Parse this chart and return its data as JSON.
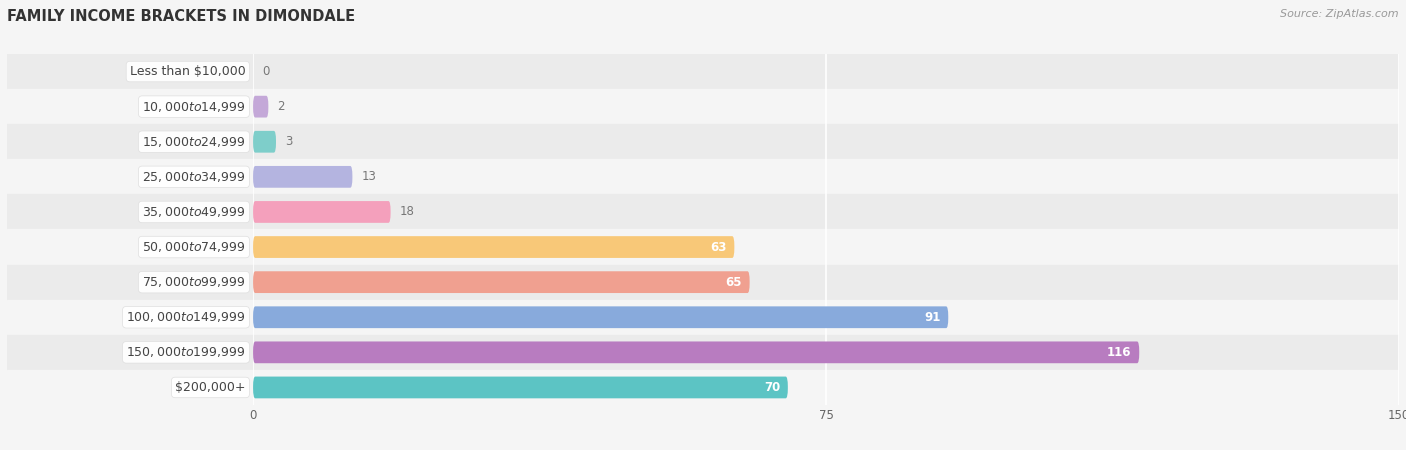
{
  "title": "FAMILY INCOME BRACKETS IN DIMONDALE",
  "source": "Source: ZipAtlas.com",
  "categories": [
    "Less than $10,000",
    "$10,000 to $14,999",
    "$15,000 to $24,999",
    "$25,000 to $34,999",
    "$35,000 to $49,999",
    "$50,000 to $74,999",
    "$75,000 to $99,999",
    "$100,000 to $149,999",
    "$150,000 to $199,999",
    "$200,000+"
  ],
  "values": [
    0,
    2,
    3,
    13,
    18,
    63,
    65,
    91,
    116,
    70
  ],
  "bar_colors": [
    "#a8c4e0",
    "#c4a8d8",
    "#7ececa",
    "#b4b4e0",
    "#f4a0bc",
    "#f8c878",
    "#f0a090",
    "#88aadc",
    "#b87cc0",
    "#5cc4c4"
  ],
  "bar_height": 0.62,
  "xlim": [
    0,
    150
  ],
  "xticks": [
    0,
    75,
    150
  ],
  "background_color": "#f5f5f5",
  "row_bg_colors": [
    "#ebebeb",
    "#f5f5f5"
  ],
  "label_fontsize": 9,
  "value_fontsize": 8.5,
  "title_fontsize": 10.5,
  "label_color": "#444444",
  "value_inside_color": "#ffffff",
  "value_outside_color": "#777777",
  "grid_color": "#ffffff",
  "value_threshold": 30
}
